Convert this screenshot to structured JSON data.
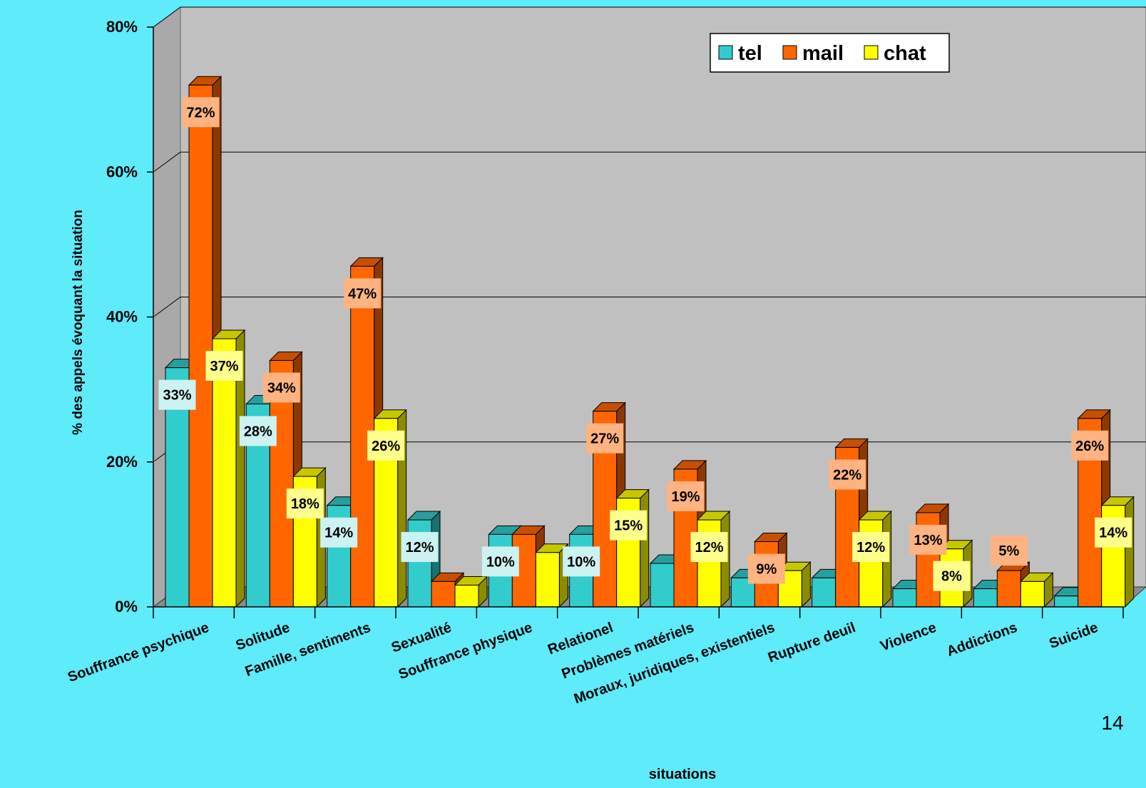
{
  "page_number": "14",
  "colors": {
    "background": "#5EEBFA",
    "plot_back": "#C0C0C0",
    "plot_side": "#A9A9A9",
    "floor": "#8C8C8C",
    "tel": "#33CCCC",
    "mail": "#FF6600",
    "chat": "#FFFF00"
  },
  "chart_data": {
    "type": "bar",
    "style": "3d-clustered",
    "title": "",
    "xlabel": "situations",
    "ylabel": "% des appels évoquant la situation",
    "ylim": [
      0,
      80
    ],
    "yticks": [
      "0%",
      "20%",
      "40%",
      "60%",
      "80%"
    ],
    "grid": true,
    "legend_position": "top-right",
    "categories": [
      "Souffrance psychique",
      "Solitude",
      "Famille, sentiments",
      "Sexualité",
      "Souffrance physique",
      "Relationel",
      "Problèmes matériels",
      "Moraux, juridiques, existentiels",
      "Rupture deuil",
      "Violence",
      "Addictions",
      "Suicide"
    ],
    "series": [
      {
        "name": "tel",
        "color": "#33CCCC",
        "values": [
          33,
          28,
          14,
          12,
          10,
          10,
          6,
          4,
          4,
          2.5,
          2.5,
          1.5
        ],
        "labels": [
          "33%",
          "28%",
          "14%",
          "12%",
          "10%",
          "10%",
          "",
          "",
          "",
          "",
          "",
          ""
        ]
      },
      {
        "name": "mail",
        "color": "#FF6600",
        "values": [
          72,
          34,
          47,
          3.5,
          10,
          27,
          19,
          9,
          22,
          13,
          5,
          26
        ],
        "labels": [
          "72%",
          "34%",
          "47%",
          "",
          "",
          "27%",
          "19%",
          "9%",
          "22%",
          "13%",
          "5%",
          "26%"
        ]
      },
      {
        "name": "chat",
        "color": "#FFFF00",
        "values": [
          37,
          18,
          26,
          3,
          7.5,
          15,
          12,
          5,
          12,
          8,
          3.5,
          14
        ],
        "labels": [
          "37%",
          "18%",
          "26%",
          "",
          "",
          "15%",
          "12%",
          "",
          "12%",
          "8%",
          "",
          "14%"
        ]
      }
    ]
  }
}
